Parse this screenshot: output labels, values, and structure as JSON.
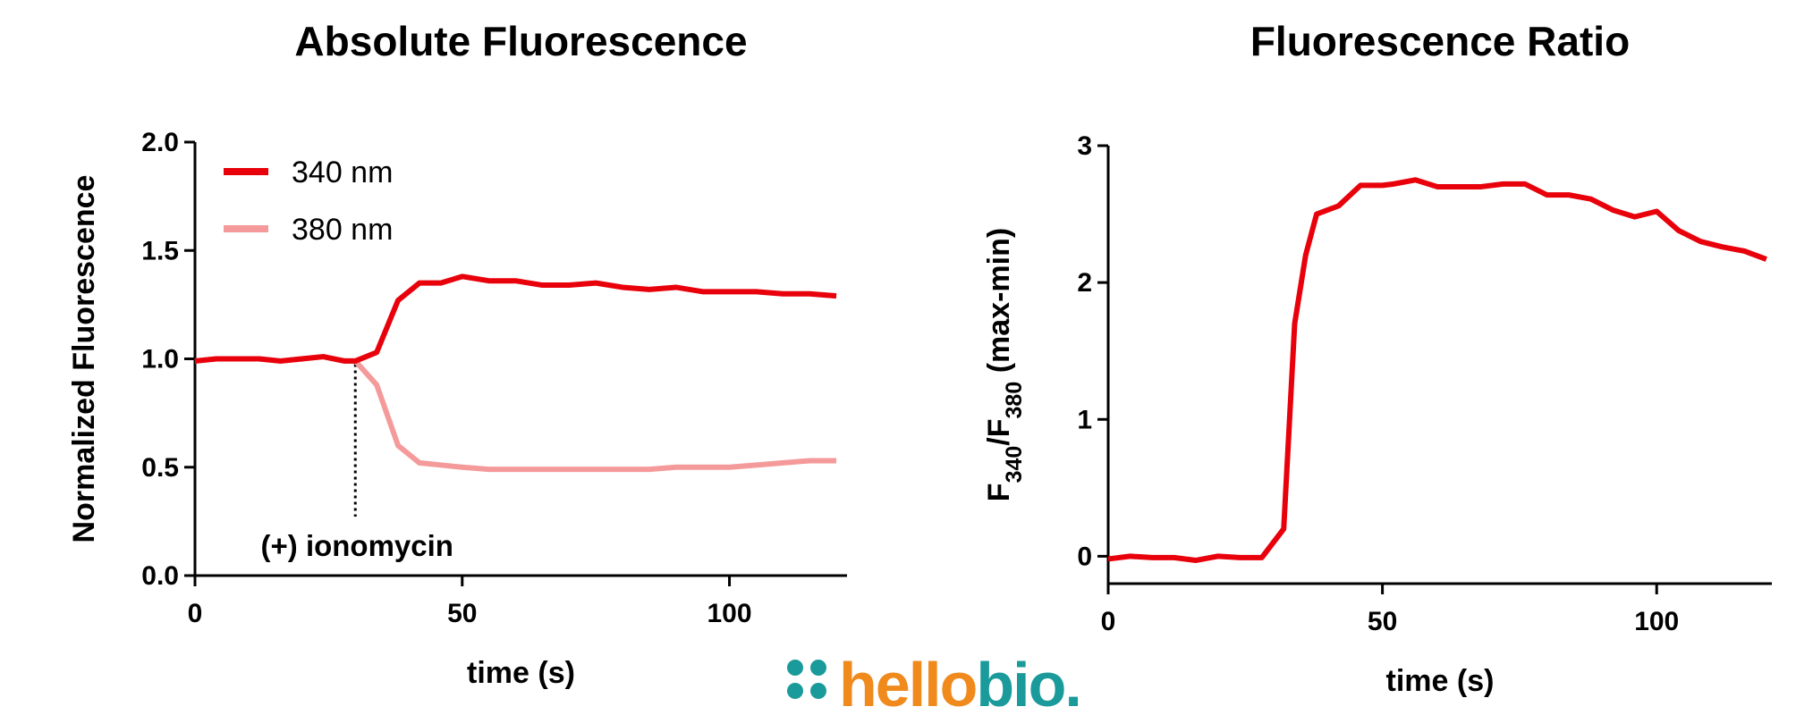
{
  "chart_data": [
    {
      "type": "line",
      "title": "Absolute Fluorescence",
      "xlabel": "time (s)",
      "ylabel": "Normalized Fluorescence",
      "x": [
        0,
        4,
        8,
        12,
        16,
        20,
        24,
        28,
        30,
        34,
        38,
        42,
        46,
        50,
        55,
        60,
        65,
        70,
        75,
        80,
        85,
        90,
        95,
        100,
        105,
        110,
        115,
        120
      ],
      "series": [
        {
          "name": "340 nm",
          "color": "#e8000b",
          "values": [
            0.99,
            1.0,
            1.0,
            1.0,
            0.99,
            1.0,
            1.01,
            0.99,
            0.99,
            1.03,
            1.27,
            1.35,
            1.35,
            1.38,
            1.36,
            1.36,
            1.34,
            1.34,
            1.35,
            1.33,
            1.32,
            1.33,
            1.31,
            1.31,
            1.31,
            1.3,
            1.3,
            1.29
          ]
        },
        {
          "name": "380 nm",
          "color": "#f59a9a",
          "values": [
            0.99,
            1.0,
            1.0,
            1.0,
            0.99,
            1.0,
            1.01,
            0.99,
            0.99,
            0.88,
            0.6,
            0.52,
            0.51,
            0.5,
            0.49,
            0.49,
            0.49,
            0.49,
            0.49,
            0.49,
            0.49,
            0.5,
            0.5,
            0.5,
            0.51,
            0.52,
            0.53,
            0.53
          ]
        }
      ],
      "xlim": [
        0,
        122
      ],
      "xticks": [
        0,
        50,
        100
      ],
      "ylim": [
        0,
        2
      ],
      "yticks": [
        {
          "value": 0,
          "label": "0.0"
        },
        {
          "value": 0.5,
          "label": "0.5"
        },
        {
          "value": 1,
          "label": "1.0"
        },
        {
          "value": 1.5,
          "label": "1.5"
        },
        {
          "value": 2,
          "label": "2.0"
        }
      ],
      "annotation": {
        "text": "(+) ionomycin",
        "x": 30
      },
      "legend": "upper left"
    },
    {
      "type": "line",
      "title": "Fluorescence Ratio",
      "xlabel": "time (s)",
      "ylabel": [
        "F",
        "340",
        "/F",
        "380",
        " (max-min)"
      ],
      "x": [
        0,
        4,
        8,
        12,
        16,
        20,
        24,
        28,
        32,
        34,
        36,
        38,
        42,
        46,
        50,
        52,
        56,
        60,
        64,
        68,
        72,
        76,
        80,
        84,
        88,
        92,
        96,
        100,
        104,
        108,
        112,
        116,
        120
      ],
      "series": [
        {
          "color": "#e8000b",
          "values": [
            -0.02,
            0,
            -0.01,
            -0.01,
            -0.03,
            0,
            -0.01,
            -0.01,
            0.2,
            1.7,
            2.2,
            2.5,
            2.56,
            2.71,
            2.71,
            2.72,
            2.75,
            2.7,
            2.7,
            2.7,
            2.72,
            2.72,
            2.64,
            2.64,
            2.61,
            2.53,
            2.48,
            2.52,
            2.38,
            2.3,
            2.26,
            2.23,
            2.17
          ]
        }
      ],
      "xlim": [
        0,
        121
      ],
      "xticks": [
        0,
        50,
        100
      ],
      "ylim": [
        -0.2,
        3
      ],
      "yticks": [
        0,
        1,
        2,
        3
      ]
    }
  ],
  "logo": {
    "text": [
      "hello",
      "bio."
    ]
  }
}
